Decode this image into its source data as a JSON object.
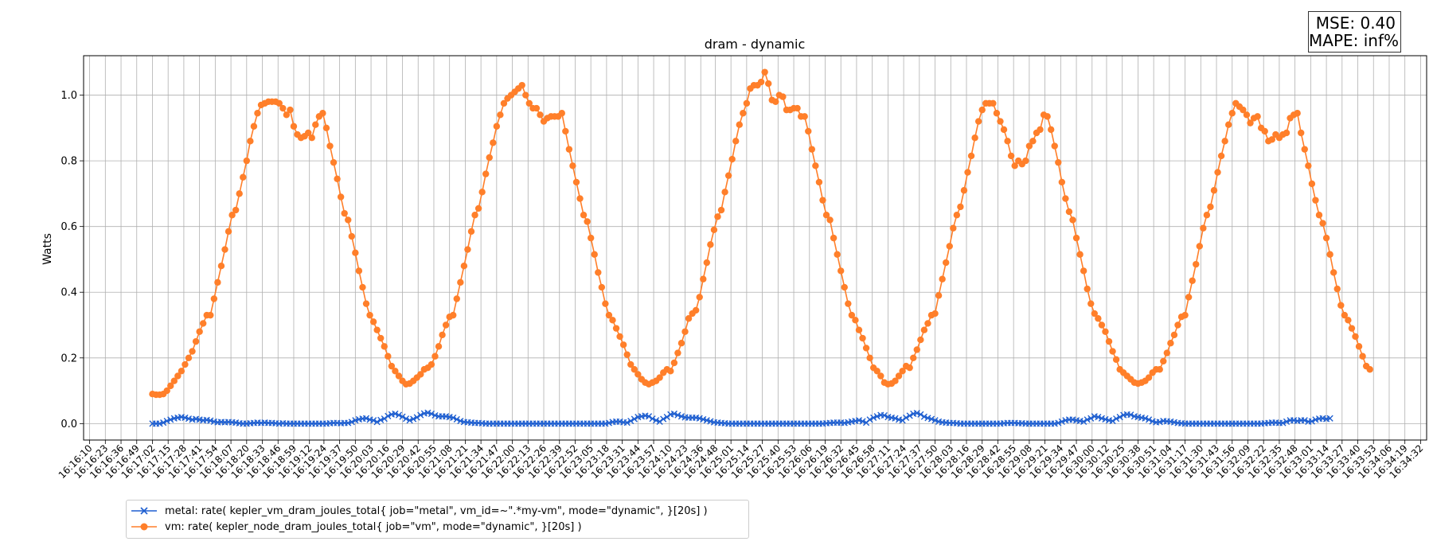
{
  "stats": {
    "mse": "MSE: 0.40",
    "mape": "MAPE: inf%"
  },
  "colors": {
    "metal": "#1f5fd0",
    "vm": "#ff7f2a",
    "grid": "#b0b0b0"
  },
  "chart_data": {
    "type": "line",
    "title": "dram - dynamic",
    "xlabel": "",
    "ylabel": "Watts",
    "grid": true,
    "legend_position": "lower-left",
    "x_ticks": [
      "16:16:10",
      "16:16:23",
      "16:16:36",
      "16:16:49",
      "16:17:02",
      "16:17:15",
      "16:17:28",
      "16:17:41",
      "16:17:54",
      "16:18:07",
      "16:18:20",
      "16:18:33",
      "16:18:46",
      "16:18:59",
      "16:19:12",
      "16:19:24",
      "16:19:37",
      "16:19:50",
      "16:20:03",
      "16:20:16",
      "16:20:29",
      "16:20:42",
      "16:20:55",
      "16:21:08",
      "16:21:21",
      "16:21:34",
      "16:21:47",
      "16:22:00",
      "16:22:13",
      "16:22:26",
      "16:22:39",
      "16:22:52",
      "16:23:05",
      "16:23:18",
      "16:23:31",
      "16:23:44",
      "16:23:57",
      "16:24:10",
      "16:24:23",
      "16:24:36",
      "16:24:48",
      "16:25:01",
      "16:25:14",
      "16:25:27",
      "16:25:40",
      "16:25:53",
      "16:26:06",
      "16:26:19",
      "16:26:32",
      "16:26:45",
      "16:26:58",
      "16:27:11",
      "16:27:24",
      "16:27:37",
      "16:27:50",
      "16:28:03",
      "16:28:16",
      "16:28:29",
      "16:28:42",
      "16:28:55",
      "16:29:08",
      "16:29:21",
      "16:29:34",
      "16:29:47",
      "16:30:00",
      "16:30:12",
      "16:30:25",
      "16:30:38",
      "16:30:51",
      "16:31:04",
      "16:31:17",
      "16:31:30",
      "16:31:43",
      "16:31:56",
      "16:32:09",
      "16:32:22",
      "16:32:35",
      "16:32:48",
      "16:33:01",
      "16:33:14",
      "16:33:27",
      "16:33:40",
      "16:33:53",
      "16:34:06",
      "16:34:19",
      "16:34:32"
    ],
    "y_ticks": [
      "0.0",
      "0.2",
      "0.4",
      "0.6",
      "0.8",
      "1.0"
    ],
    "ylim": [
      -0.05,
      1.12
    ],
    "x_range": [
      "16:16:05",
      "16:34:37"
    ],
    "series": [
      {
        "name": "metal: rate( kepler_vm_dram_joules_total{ job=\"metal\", vm_id=~\".*my-vm\", mode=\"dynamic\", }[20s] )",
        "marker": "x",
        "color": "#1f5fd0",
        "t_start": "16:17:02",
        "t_step_seconds": 3,
        "values": [
          0,
          0,
          0,
          0.003,
          0.008,
          0.012,
          0.016,
          0.018,
          0.02,
          0.018,
          0.015,
          0.012,
          0.014,
          0.012,
          0.01,
          0.011,
          0.009,
          0.006,
          0.004,
          0.005,
          0.004,
          0.005,
          0.004,
          0.003,
          0.001,
          0,
          0,
          0.001,
          0.002,
          0.003,
          0.002,
          0.003,
          0.002,
          0.002,
          0.001,
          0,
          0.001,
          0,
          0,
          0,
          0,
          0,
          0,
          0,
          0,
          0,
          0,
          0,
          0,
          0.001,
          0.002,
          0.002,
          0.001,
          0.002,
          0.002,
          0.005,
          0.01,
          0.013,
          0.015,
          0.016,
          0.012,
          0.01,
          0.005,
          0.011,
          0.015,
          0.023,
          0.028,
          0.03,
          0.026,
          0.021,
          0.015,
          0.01,
          0.014,
          0.019,
          0.026,
          0.031,
          0.033,
          0.03,
          0.025,
          0.022,
          0.022,
          0.022,
          0.02,
          0.018,
          0.013,
          0.008,
          0.005,
          0.004,
          0.003,
          0.002,
          0.002,
          0.001,
          0,
          0,
          0,
          0,
          0,
          0,
          0,
          0,
          0,
          0,
          0,
          0,
          0,
          0,
          0,
          0,
          0,
          0,
          0,
          0,
          0,
          0,
          0,
          0,
          0,
          0,
          0,
          0,
          0,
          0,
          0,
          0,
          0,
          0,
          0.002,
          0.005,
          0.006,
          0.006,
          0.004,
          0.003,
          0.008,
          0.014,
          0.02,
          0.022,
          0.024,
          0.022,
          0.015,
          0.01,
          0.006,
          0.014,
          0.02,
          0.028,
          0.03,
          0.026,
          0.022,
          0.019,
          0.018,
          0.018,
          0.018,
          0.016,
          0.013,
          0.01,
          0.007,
          0.004,
          0.003,
          0.002,
          0.001,
          0,
          0,
          0,
          0,
          0,
          0,
          0,
          0,
          0,
          0,
          0,
          0,
          0,
          0,
          0,
          0,
          0,
          0,
          0,
          0,
          0,
          0,
          0,
          0,
          0,
          0,
          0,
          0.001,
          0.002,
          0.003,
          0.003,
          0.003,
          0.002,
          0.004,
          0.006,
          0.008,
          0.01,
          0.007,
          0.003,
          0.012,
          0.018,
          0.022,
          0.026,
          0.025,
          0.02,
          0.018,
          0.016,
          0.012,
          0.01,
          0.018,
          0.024,
          0.03,
          0.032,
          0.028,
          0.021,
          0.017,
          0.014,
          0.01,
          0.006,
          0.004,
          0.003,
          0.002,
          0.002,
          0.001,
          0,
          0,
          0,
          0,
          0,
          0,
          0,
          0,
          0,
          0,
          0,
          0,
          0.001,
          0.002,
          0.002,
          0.002,
          0.001,
          0.001,
          0,
          0,
          0,
          0,
          0,
          0,
          0,
          0,
          0,
          0.002,
          0.006,
          0.01,
          0.012,
          0.012,
          0.01,
          0.008,
          0.006,
          0.012,
          0.016,
          0.022,
          0.02,
          0.016,
          0.013,
          0.01,
          0.008,
          0.015,
          0.02,
          0.026,
          0.028,
          0.027,
          0.022,
          0.02,
          0.018,
          0.016,
          0.012,
          0.007,
          0.004,
          0.005,
          0.008,
          0.007,
          0.006,
          0.004,
          0.002,
          0.001,
          0,
          0,
          0,
          0,
          0,
          0,
          0,
          0,
          0,
          0,
          0,
          0,
          0,
          0,
          0,
          0,
          0,
          0,
          0,
          0,
          0,
          0,
          0.001,
          0.002,
          0.003,
          0.003,
          0.002,
          0.002,
          0.006,
          0.01,
          0.01,
          0.008,
          0.01,
          0.01,
          0.006,
          0.007,
          0.012,
          0.015,
          0.016,
          0.014,
          0.016
        ]
      },
      {
        "name": "vm: rate( kepler_node_dram_joules_total{ job=\"vm\", mode=\"dynamic\", }[20s] )",
        "marker": "o",
        "color": "#ff7f2a",
        "t_start": "16:17:02",
        "t_step_seconds": 3,
        "values": [
          0.09,
          0.088,
          0.088,
          0.09,
          0.1,
          0.115,
          0.13,
          0.145,
          0.16,
          0.18,
          0.2,
          0.22,
          0.25,
          0.28,
          0.305,
          0.33,
          0.33,
          0.38,
          0.43,
          0.48,
          0.53,
          0.585,
          0.635,
          0.65,
          0.7,
          0.75,
          0.8,
          0.86,
          0.905,
          0.945,
          0.97,
          0.975,
          0.98,
          0.98,
          0.98,
          0.975,
          0.96,
          0.94,
          0.955,
          0.905,
          0.88,
          0.87,
          0.875,
          0.885,
          0.87,
          0.91,
          0.935,
          0.945,
          0.9,
          0.845,
          0.795,
          0.745,
          0.69,
          0.64,
          0.62,
          0.57,
          0.52,
          0.465,
          0.415,
          0.365,
          0.33,
          0.31,
          0.285,
          0.26,
          0.235,
          0.205,
          0.175,
          0.16,
          0.145,
          0.13,
          0.12,
          0.122,
          0.13,
          0.14,
          0.15,
          0.165,
          0.17,
          0.18,
          0.205,
          0.235,
          0.27,
          0.3,
          0.325,
          0.33,
          0.38,
          0.43,
          0.48,
          0.53,
          0.585,
          0.635,
          0.655,
          0.705,
          0.76,
          0.81,
          0.855,
          0.905,
          0.94,
          0.975,
          0.99,
          1.0,
          1.01,
          1.02,
          1.03,
          1.0,
          0.975,
          0.96,
          0.96,
          0.94,
          0.92,
          0.93,
          0.935,
          0.935,
          0.935,
          0.945,
          0.89,
          0.835,
          0.785,
          0.735,
          0.685,
          0.635,
          0.615,
          0.565,
          0.515,
          0.46,
          0.415,
          0.365,
          0.33,
          0.315,
          0.29,
          0.265,
          0.24,
          0.21,
          0.18,
          0.165,
          0.15,
          0.135,
          0.125,
          0.12,
          0.125,
          0.13,
          0.14,
          0.155,
          0.165,
          0.16,
          0.185,
          0.215,
          0.245,
          0.28,
          0.32,
          0.335,
          0.345,
          0.385,
          0.44,
          0.49,
          0.545,
          0.59,
          0.63,
          0.65,
          0.705,
          0.755,
          0.805,
          0.86,
          0.91,
          0.945,
          0.975,
          1.02,
          1.03,
          1.03,
          1.04,
          1.07,
          1.035,
          0.985,
          0.98,
          1.0,
          0.995,
          0.955,
          0.955,
          0.96,
          0.96,
          0.935,
          0.935,
          0.89,
          0.835,
          0.785,
          0.735,
          0.68,
          0.635,
          0.62,
          0.565,
          0.515,
          0.465,
          0.415,
          0.365,
          0.33,
          0.315,
          0.285,
          0.26,
          0.23,
          0.2,
          0.17,
          0.16,
          0.145,
          0.125,
          0.12,
          0.122,
          0.13,
          0.145,
          0.16,
          0.175,
          0.17,
          0.2,
          0.225,
          0.255,
          0.285,
          0.305,
          0.33,
          0.335,
          0.39,
          0.44,
          0.49,
          0.54,
          0.595,
          0.635,
          0.66,
          0.71,
          0.765,
          0.815,
          0.87,
          0.92,
          0.955,
          0.975,
          0.975,
          0.975,
          0.945,
          0.92,
          0.895,
          0.86,
          0.815,
          0.785,
          0.8,
          0.79,
          0.8,
          0.845,
          0.86,
          0.885,
          0.895,
          0.94,
          0.935,
          0.895,
          0.845,
          0.795,
          0.735,
          0.685,
          0.645,
          0.62,
          0.565,
          0.515,
          0.465,
          0.41,
          0.365,
          0.335,
          0.32,
          0.3,
          0.28,
          0.25,
          0.22,
          0.195,
          0.165,
          0.155,
          0.145,
          0.135,
          0.125,
          0.122,
          0.125,
          0.13,
          0.14,
          0.155,
          0.165,
          0.165,
          0.19,
          0.215,
          0.245,
          0.27,
          0.3,
          0.325,
          0.33,
          0.385,
          0.435,
          0.485,
          0.54,
          0.595,
          0.635,
          0.66,
          0.71,
          0.765,
          0.815,
          0.86,
          0.91,
          0.945,
          0.975,
          0.965,
          0.955,
          0.94,
          0.915,
          0.93,
          0.935,
          0.9,
          0.89,
          0.86,
          0.865,
          0.88,
          0.87,
          0.88,
          0.885,
          0.93,
          0.94,
          0.945,
          0.885,
          0.835,
          0.785,
          0.73,
          0.68,
          0.635,
          0.61,
          0.565,
          0.515,
          0.46,
          0.41,
          0.36,
          0.33,
          0.315,
          0.29,
          0.265,
          0.235,
          0.205,
          0.175,
          0.165
        ]
      }
    ]
  }
}
